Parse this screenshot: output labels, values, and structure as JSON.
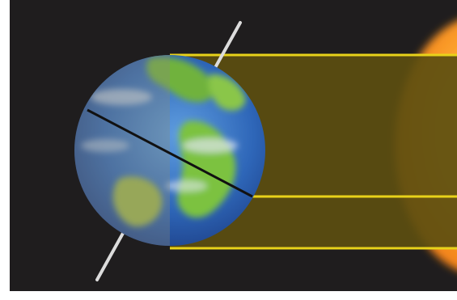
{
  "diagram": {
    "subject": "earth-sun-illumination",
    "colors": {
      "background": "#1f1d1e",
      "frame": "#ffffff",
      "sunlight_band": "#5c4e10",
      "sunlight_border": "#e8d21a",
      "sun_core": "#ffb233",
      "sun_edge": "#f07a14",
      "earth_ocean": "#2f5fae",
      "earth_land": "#6fb23c",
      "night_shade": "#8a8a78",
      "axis": "#dcdcdc",
      "terminator_line": "#111111"
    },
    "icons": {
      "earth": "globe-icon",
      "sun": "sun-icon"
    }
  }
}
